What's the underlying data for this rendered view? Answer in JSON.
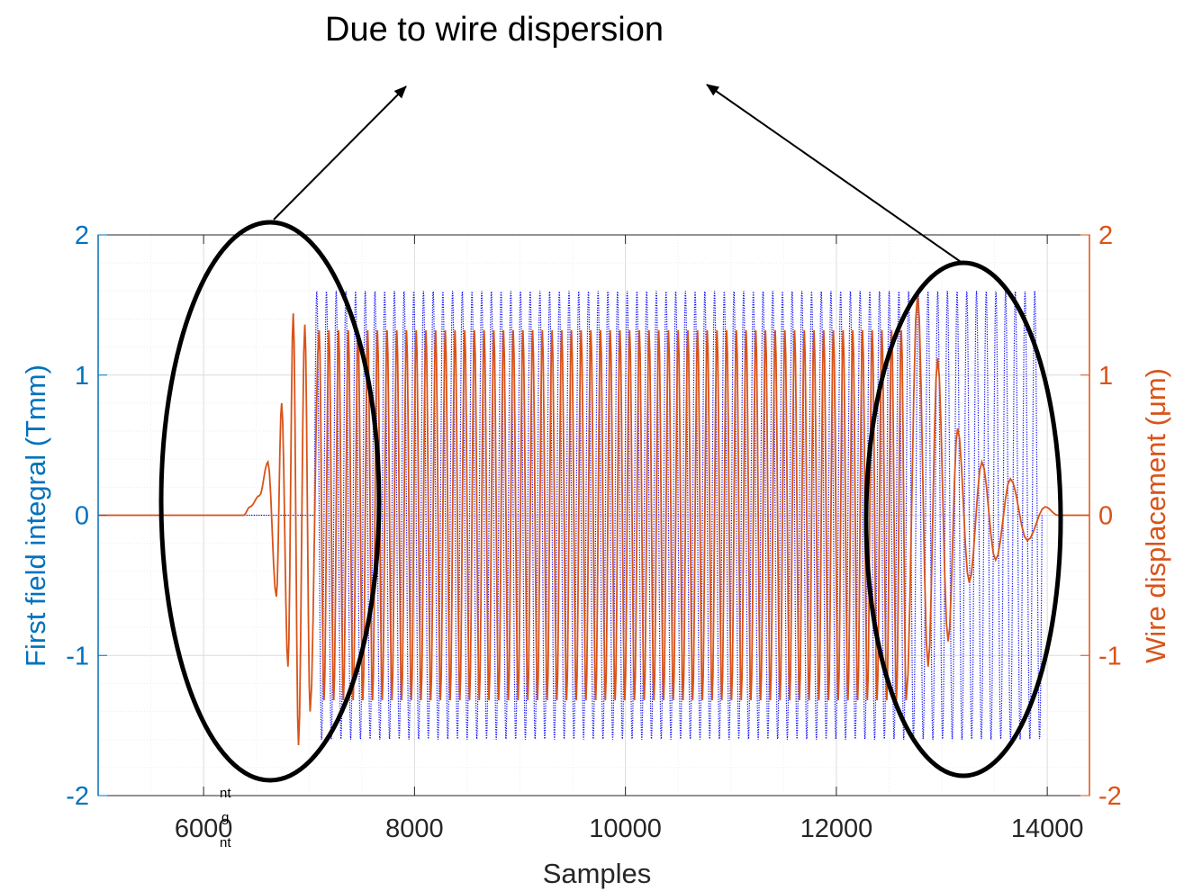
{
  "chart_data": {
    "type": "line",
    "title": "",
    "xlabel": "Samples",
    "ylabel_left": "First field integral (Tmm)",
    "ylabel_right": "Wire displacement (μm)",
    "xlim": [
      5000,
      14400
    ],
    "ylim_left": [
      -2,
      2
    ],
    "ylim_right": [
      -2,
      2
    ],
    "x_ticks": [
      "6000",
      "8000",
      "10000",
      "12000",
      "14000"
    ],
    "y_ticks_left": [
      "-2",
      "-1",
      "0",
      "1",
      "2"
    ],
    "y_ticks_right": [
      "-2",
      "-1",
      "0",
      "1",
      "2"
    ],
    "grid": true,
    "minor_grid": true,
    "series": [
      {
        "name": "",
        "axis": "left",
        "style": "dotted",
        "color": "#0000ff",
        "x_start": 7050,
        "x_end": 13950,
        "amplitude": 1.6,
        "period_samples": 92,
        "baseline_range": [
          5000,
          7050
        ]
      },
      {
        "name": "",
        "axis": "right",
        "style": "solid",
        "color": "#d95319",
        "full_amplitude": 1.32,
        "plateau": [
          7050,
          12700
        ],
        "leading_dispersion_peaks": [
          {
            "x": 6440,
            "y": 0.06
          },
          {
            "x": 6530,
            "y": 0.14
          },
          {
            "x": 6610,
            "y": 0.38
          },
          {
            "x": 6690,
            "y": -0.58
          },
          {
            "x": 6740,
            "y": 0.8
          },
          {
            "x": 6800,
            "y": -1.08
          },
          {
            "x": 6850,
            "y": 1.44
          },
          {
            "x": 6900,
            "y": -1.64
          },
          {
            "x": 6960,
            "y": 1.36
          },
          {
            "x": 7010,
            "y": -1.4
          }
        ],
        "trailing_dispersion_peaks": [
          {
            "x": 12770,
            "y": 1.58
          },
          {
            "x": 12870,
            "y": -1.08
          },
          {
            "x": 12960,
            "y": 1.12
          },
          {
            "x": 13060,
            "y": -0.9
          },
          {
            "x": 13150,
            "y": 0.62
          },
          {
            "x": 13260,
            "y": -0.48
          },
          {
            "x": 13380,
            "y": 0.38
          },
          {
            "x": 13510,
            "y": -0.32
          },
          {
            "x": 13650,
            "y": 0.26
          },
          {
            "x": 13810,
            "y": -0.18
          },
          {
            "x": 13980,
            "y": 0.06
          }
        ]
      }
    ],
    "annotations": [
      {
        "text": "Due to wire dispersion"
      }
    ],
    "colors": {
      "left_axis": "#0072bd",
      "right_axis": "#d95319",
      "grid": "#e2e2e2",
      "annotation": "#000000"
    }
  },
  "side_text": [
    "nt",
    "g",
    "nt"
  ]
}
